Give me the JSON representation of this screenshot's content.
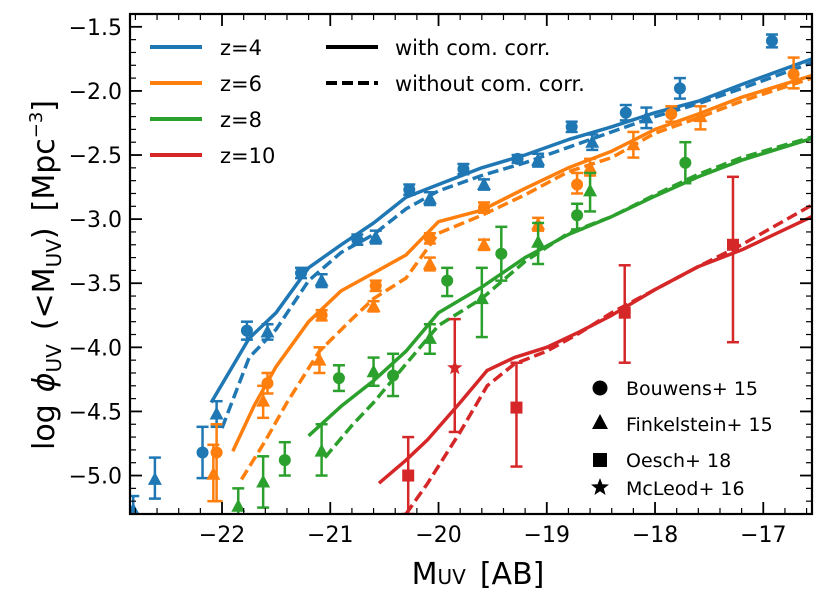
{
  "chart_data": {
    "type": "line",
    "title": "",
    "xlabel_main": "M",
    "xlabel_sub": "UV",
    "xlabel_unit": "[AB]",
    "ylabel_log": "log",
    "ylabel_phi": "ϕ",
    "ylabel_phi_sub": "UV",
    "ylabel_lt": "(<M",
    "ylabel_lt_sub": "UV",
    "ylabel_close": ")",
    "ylabel_unit_open": "[Mpc",
    "ylabel_unit_exp": "−3",
    "ylabel_unit_close": "]",
    "xlim": [
      -22.85,
      -16.55
    ],
    "ylim": [
      -5.3,
      -1.4
    ],
    "x_ticks": [
      -22,
      -21,
      -20,
      -19,
      -18,
      -17
    ],
    "x_tick_labels": [
      "−22",
      "−21",
      "−20",
      "−19",
      "−18",
      "−17"
    ],
    "y_ticks": [
      -5.0,
      -4.5,
      -4.0,
      -3.5,
      -3.0,
      -2.5,
      -2.0,
      -1.5
    ],
    "y_tick_labels": [
      "−5.0",
      "−4.5",
      "−4.0",
      "−3.5",
      "−3.0",
      "−2.5",
      "−2.0",
      "−1.5"
    ],
    "style_legend": [
      {
        "label": "with com. corr.",
        "dash": "solid"
      },
      {
        "label": "without com. corr.",
        "dash": "dashed"
      }
    ],
    "survey_legend": [
      {
        "label": "Bouwens+ 15",
        "marker": "circle"
      },
      {
        "label": "Finkelstein+ 15",
        "marker": "triangle"
      },
      {
        "label": "Oesch+ 18",
        "marker": "square"
      },
      {
        "label": "McLeod+ 16",
        "marker": "star"
      }
    ],
    "series": [
      {
        "name": "z=4",
        "color": "#1f77b4",
        "with": {
          "x": [
            -22.1,
            -21.75,
            -21.5,
            -21.2,
            -20.9,
            -20.6,
            -20.3,
            -20.0,
            -19.6,
            -19.2,
            -18.8,
            -18.4,
            -18.0,
            -17.6,
            -17.2,
            -16.55
          ],
          "y": [
            -4.43,
            -3.93,
            -3.73,
            -3.38,
            -3.2,
            -3.03,
            -2.83,
            -2.73,
            -2.6,
            -2.5,
            -2.38,
            -2.28,
            -2.17,
            -2.08,
            -1.95,
            -1.75
          ]
        },
        "without": {
          "x": [
            -22.0,
            -21.75,
            -21.5,
            -21.2,
            -20.9,
            -20.6,
            -20.3,
            -20.0,
            -19.6,
            -19.2,
            -18.8,
            -18.4,
            -18.0,
            -17.6,
            -17.2,
            -16.55
          ],
          "y": [
            -4.63,
            -4.08,
            -3.86,
            -3.48,
            -3.26,
            -3.12,
            -2.92,
            -2.78,
            -2.66,
            -2.56,
            -2.44,
            -2.32,
            -2.2,
            -2.1,
            -1.98,
            -1.78
          ]
        },
        "points": [
          {
            "marker": "circle",
            "x": -22.18,
            "y": -4.82,
            "lo": -5.02,
            "hi": -4.62
          },
          {
            "marker": "triangle",
            "x": -22.62,
            "y": -5.03,
            "lo": -5.18,
            "hi": -4.86
          },
          {
            "marker": "triangle",
            "x": -22.82,
            "y": -5.27,
            "lo": -5.33,
            "hi": -5.16
          },
          {
            "marker": "triangle",
            "x": -22.05,
            "y": -4.52,
            "lo": -4.62,
            "hi": -4.42
          },
          {
            "marker": "circle",
            "x": -21.77,
            "y": -3.87,
            "lo": -3.94,
            "hi": -3.8
          },
          {
            "marker": "triangle",
            "x": -21.58,
            "y": -3.88,
            "lo": -3.94,
            "hi": -3.82
          },
          {
            "marker": "circle",
            "x": -21.27,
            "y": -3.42,
            "lo": -3.46,
            "hi": -3.38
          },
          {
            "marker": "triangle",
            "x": -21.08,
            "y": -3.48,
            "lo": -3.53,
            "hi": -3.43
          },
          {
            "marker": "circle",
            "x": -20.75,
            "y": -3.16,
            "lo": -3.2,
            "hi": -3.12
          },
          {
            "marker": "triangle",
            "x": -20.58,
            "y": -3.14,
            "lo": -3.19,
            "hi": -3.09
          },
          {
            "marker": "circle",
            "x": -20.27,
            "y": -2.77,
            "lo": -2.81,
            "hi": -2.73
          },
          {
            "marker": "triangle",
            "x": -20.08,
            "y": -2.84,
            "lo": -2.89,
            "hi": -2.79
          },
          {
            "marker": "circle",
            "x": -19.77,
            "y": -2.61,
            "lo": -2.65,
            "hi": -2.57
          },
          {
            "marker": "triangle",
            "x": -19.58,
            "y": -2.73,
            "lo": -2.77,
            "hi": -2.69
          },
          {
            "marker": "circle",
            "x": -19.27,
            "y": -2.53,
            "lo": -2.56,
            "hi": -2.5
          },
          {
            "marker": "triangle",
            "x": -19.08,
            "y": -2.54,
            "lo": -2.59,
            "hi": -2.49
          },
          {
            "marker": "circle",
            "x": -18.77,
            "y": -2.28,
            "lo": -2.32,
            "hi": -2.24
          },
          {
            "marker": "triangle",
            "x": -18.58,
            "y": -2.4,
            "lo": -2.46,
            "hi": -2.34
          },
          {
            "marker": "circle",
            "x": -18.27,
            "y": -2.17,
            "lo": -2.23,
            "hi": -2.11
          },
          {
            "marker": "triangle",
            "x": -18.08,
            "y": -2.21,
            "lo": -2.29,
            "hi": -2.13
          },
          {
            "marker": "circle",
            "x": -17.77,
            "y": -1.98,
            "lo": -2.06,
            "hi": -1.9
          },
          {
            "marker": "circle",
            "x": -16.92,
            "y": -1.61,
            "lo": -1.66,
            "hi": -1.56
          }
        ]
      },
      {
        "name": "z=6",
        "color": "#ff7f0e",
        "with": {
          "x": [
            -21.9,
            -21.7,
            -21.5,
            -21.2,
            -20.9,
            -20.6,
            -20.3,
            -20.0,
            -19.6,
            -19.2,
            -18.8,
            -18.4,
            -18.0,
            -17.6,
            -17.2,
            -16.55
          ],
          "y": [
            -4.81,
            -4.45,
            -4.15,
            -3.8,
            -3.56,
            -3.42,
            -3.28,
            -3.02,
            -2.93,
            -2.76,
            -2.6,
            -2.47,
            -2.3,
            -2.18,
            -2.05,
            -1.88
          ]
        },
        "without": {
          "x": [
            -21.82,
            -21.6,
            -21.4,
            -21.1,
            -20.8,
            -20.6,
            -20.3,
            -20.0,
            -19.6,
            -19.2,
            -18.8,
            -18.4,
            -18.0,
            -17.6,
            -17.2,
            -16.55
          ],
          "y": [
            -5.03,
            -4.73,
            -4.43,
            -4.03,
            -3.78,
            -3.62,
            -3.46,
            -3.11,
            -2.97,
            -2.81,
            -2.63,
            -2.52,
            -2.33,
            -2.21,
            -2.08,
            -1.9
          ]
        },
        "points": [
          {
            "marker": "circle",
            "x": -22.05,
            "y": -4.82,
            "lo": -5.2,
            "hi": -4.6
          },
          {
            "marker": "triangle",
            "x": -22.08,
            "y": -4.99,
            "lo": -5.2,
            "hi": -4.76
          },
          {
            "marker": "circle",
            "x": -21.58,
            "y": -4.28,
            "lo": -4.36,
            "hi": -4.2
          },
          {
            "marker": "triangle",
            "x": -21.62,
            "y": -4.42,
            "lo": -4.55,
            "hi": -4.3
          },
          {
            "marker": "circle",
            "x": -21.08,
            "y": -3.75,
            "lo": -3.79,
            "hi": -3.71
          },
          {
            "marker": "triangle",
            "x": -21.1,
            "y": -4.1,
            "lo": -4.2,
            "hi": -4.0
          },
          {
            "marker": "circle",
            "x": -20.58,
            "y": -3.52,
            "lo": -3.56,
            "hi": -3.48
          },
          {
            "marker": "triangle",
            "x": -20.6,
            "y": -3.68,
            "lo": -3.72,
            "hi": -3.64
          },
          {
            "marker": "circle",
            "x": -20.08,
            "y": -3.15,
            "lo": -3.19,
            "hi": -3.11
          },
          {
            "marker": "triangle",
            "x": -20.08,
            "y": -3.35,
            "lo": -3.4,
            "hi": -3.3
          },
          {
            "marker": "circle",
            "x": -19.58,
            "y": -2.91,
            "lo": -2.95,
            "hi": -2.87
          },
          {
            "marker": "triangle",
            "x": -19.58,
            "y": -3.2,
            "lo": -3.24,
            "hi": -3.16
          },
          {
            "marker": "circle",
            "x": -18.72,
            "y": -2.73,
            "lo": -2.8,
            "hi": -2.64
          },
          {
            "marker": "triangle",
            "x": -19.08,
            "y": -3.04,
            "lo": -3.09,
            "hi": -2.99
          },
          {
            "marker": "triangle",
            "x": -18.6,
            "y": -2.6,
            "lo": -2.66,
            "hi": -2.53
          },
          {
            "marker": "triangle",
            "x": -18.2,
            "y": -2.42,
            "lo": -2.52,
            "hi": -2.32
          },
          {
            "marker": "circle",
            "x": -17.85,
            "y": -2.18,
            "lo": -2.24,
            "hi": -2.12
          },
          {
            "marker": "triangle",
            "x": -17.58,
            "y": -2.2,
            "lo": -2.3,
            "hi": -2.12
          },
          {
            "marker": "circle",
            "x": -16.72,
            "y": -1.87,
            "lo": -1.98,
            "hi": -1.74
          }
        ]
      },
      {
        "name": "z=8",
        "color": "#2ca02c",
        "with": {
          "x": [
            -21.2,
            -20.9,
            -20.6,
            -20.3,
            -20.0,
            -19.6,
            -19.2,
            -18.8,
            -18.4,
            -18.0,
            -17.6,
            -17.2,
            -16.55
          ],
          "y": [
            -4.69,
            -4.46,
            -4.26,
            -4.03,
            -3.73,
            -3.53,
            -3.3,
            -3.12,
            -2.98,
            -2.82,
            -2.67,
            -2.54,
            -2.37
          ]
        },
        "without": {
          "x": [
            -21.05,
            -20.8,
            -20.6,
            -20.3,
            -20.0,
            -19.6,
            -19.2,
            -18.8,
            -18.4,
            -18.0,
            -17.6,
            -17.2,
            -16.55
          ],
          "y": [
            -4.86,
            -4.61,
            -4.43,
            -4.13,
            -3.83,
            -3.62,
            -3.33,
            -3.11,
            -2.98,
            -2.81,
            -2.65,
            -2.52,
            -2.36
          ]
        },
        "points": [
          {
            "marker": "circle",
            "x": -21.42,
            "y": -4.88,
            "lo": -5.0,
            "hi": -4.74
          },
          {
            "marker": "triangle",
            "x": -21.62,
            "y": -5.05,
            "lo": -5.25,
            "hi": -4.85
          },
          {
            "marker": "triangle",
            "x": -21.85,
            "y": -5.24,
            "lo": -5.36,
            "hi": -5.1
          },
          {
            "marker": "circle",
            "x": -20.92,
            "y": -4.24,
            "lo": -4.34,
            "hi": -4.14
          },
          {
            "marker": "triangle",
            "x": -21.08,
            "y": -4.81,
            "lo": -5.0,
            "hi": -4.6
          },
          {
            "marker": "circle",
            "x": -20.42,
            "y": -4.22,
            "lo": -4.38,
            "hi": -4.05
          },
          {
            "marker": "triangle",
            "x": -20.6,
            "y": -4.19,
            "lo": -4.3,
            "hi": -4.08
          },
          {
            "marker": "circle",
            "x": -19.92,
            "y": -3.48,
            "lo": -3.6,
            "hi": -3.38
          },
          {
            "marker": "triangle",
            "x": -20.08,
            "y": -3.93,
            "lo": -4.05,
            "hi": -3.82
          },
          {
            "marker": "circle",
            "x": -19.42,
            "y": -3.27,
            "lo": -3.48,
            "hi": -3.06
          },
          {
            "marker": "triangle",
            "x": -19.6,
            "y": -3.62,
            "lo": -3.92,
            "hi": -3.38
          },
          {
            "marker": "circle",
            "x": -18.72,
            "y": -2.97,
            "lo": -3.08,
            "hi": -2.88
          },
          {
            "marker": "triangle",
            "x": -19.08,
            "y": -3.18,
            "lo": -3.35,
            "hi": -3.03
          },
          {
            "marker": "triangle",
            "x": -18.6,
            "y": -2.78,
            "lo": -2.94,
            "hi": -2.64
          },
          {
            "marker": "circle",
            "x": -17.72,
            "y": -2.56,
            "lo": -2.72,
            "hi": -2.4
          }
        ]
      },
      {
        "name": "z=10",
        "color": "#d62728",
        "with": {
          "x": [
            -20.55,
            -20.3,
            -20.1,
            -19.8,
            -19.55,
            -19.3,
            -19.0,
            -18.7,
            -18.4,
            -18.0,
            -17.6,
            -17.2,
            -16.55
          ],
          "y": [
            -5.06,
            -4.88,
            -4.72,
            -4.43,
            -4.18,
            -4.08,
            -4.0,
            -3.88,
            -3.75,
            -3.55,
            -3.37,
            -3.24,
            -2.98
          ]
        },
        "without": {
          "x": [
            -20.3,
            -20.1,
            -19.8,
            -19.55,
            -19.3,
            -19.0,
            -18.7,
            -18.4,
            -18.0,
            -17.6,
            -17.2,
            -16.55
          ],
          "y": [
            -5.3,
            -5.06,
            -4.66,
            -4.3,
            -4.13,
            -4.03,
            -3.89,
            -3.73,
            -3.55,
            -3.37,
            -3.2,
            -2.89
          ]
        },
        "points": [
          {
            "marker": "square",
            "x": -20.28,
            "y": -5.0,
            "lo": -5.3,
            "hi": -4.7
          },
          {
            "marker": "square",
            "x": -19.28,
            "y": -4.47,
            "lo": -4.93,
            "hi": -4.12
          },
          {
            "marker": "square",
            "x": -18.28,
            "y": -3.73,
            "lo": -4.12,
            "hi": -3.36
          },
          {
            "marker": "square",
            "x": -17.28,
            "y": -3.2,
            "lo": -3.96,
            "hi": -2.67
          },
          {
            "marker": "star",
            "x": -19.85,
            "y": -4.16,
            "lo": -4.66,
            "hi": -3.78
          }
        ]
      }
    ]
  }
}
